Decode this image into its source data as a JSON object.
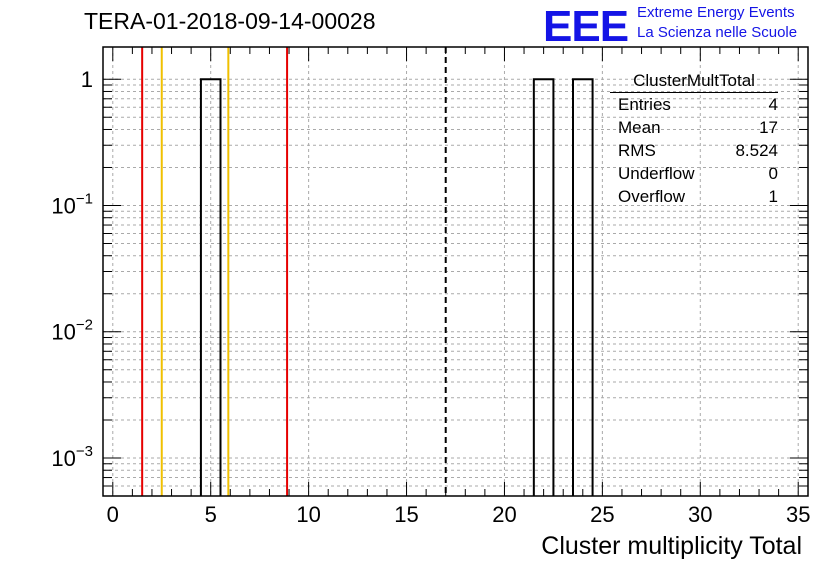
{
  "header": {
    "title": "TERA-01-2018-09-14-00028",
    "logo_mark": "EEE",
    "logo_line1": "Extreme Energy Events",
    "logo_line2": "La Scienza nelle Scuole"
  },
  "stats": {
    "name": "ClusterMultTotal",
    "rows": [
      {
        "label": "Entries",
        "value": "4"
      },
      {
        "label": "Mean",
        "value": "17"
      },
      {
        "label": "RMS",
        "value": "8.524"
      },
      {
        "label": "Underflow",
        "value": "0"
      },
      {
        "label": "Overflow",
        "value": "1"
      }
    ]
  },
  "chart_data": {
    "type": "bar",
    "title": "TERA-01-2018-09-14-00028",
    "xlabel": "Cluster multiplicity Total",
    "ylabel": "",
    "xlim": [
      -0.5,
      35.5
    ],
    "ylim": [
      0.0005,
      1.8
    ],
    "y_scale": "log",
    "grid": true,
    "x_ticks": [
      "0",
      "5",
      "10",
      "15",
      "20",
      "25",
      "30",
      "35"
    ],
    "y_ticks": [
      {
        "value": 0.001,
        "base": "10",
        "exp": "−3"
      },
      {
        "value": 0.01,
        "base": "10",
        "exp": "−2"
      },
      {
        "value": 0.1,
        "base": "10",
        "exp": "−1"
      },
      {
        "value": 1,
        "base": "1",
        "exp": ""
      }
    ],
    "bins": [
      {
        "low": 4.5,
        "high": 5.5,
        "value": 1
      },
      {
        "low": 21.5,
        "high": 22.5,
        "value": 1
      },
      {
        "low": 23.5,
        "high": 24.5,
        "value": 1
      }
    ],
    "reference_lines": [
      {
        "x": 1.5,
        "color": "#e60000",
        "style": "solid"
      },
      {
        "x": 2.5,
        "color": "#f0c000",
        "style": "solid"
      },
      {
        "x": 5.9,
        "color": "#f0c000",
        "style": "solid"
      },
      {
        "x": 8.9,
        "color": "#e60000",
        "style": "solid"
      },
      {
        "x": 17,
        "color": "#000000",
        "style": "dashed"
      }
    ]
  }
}
